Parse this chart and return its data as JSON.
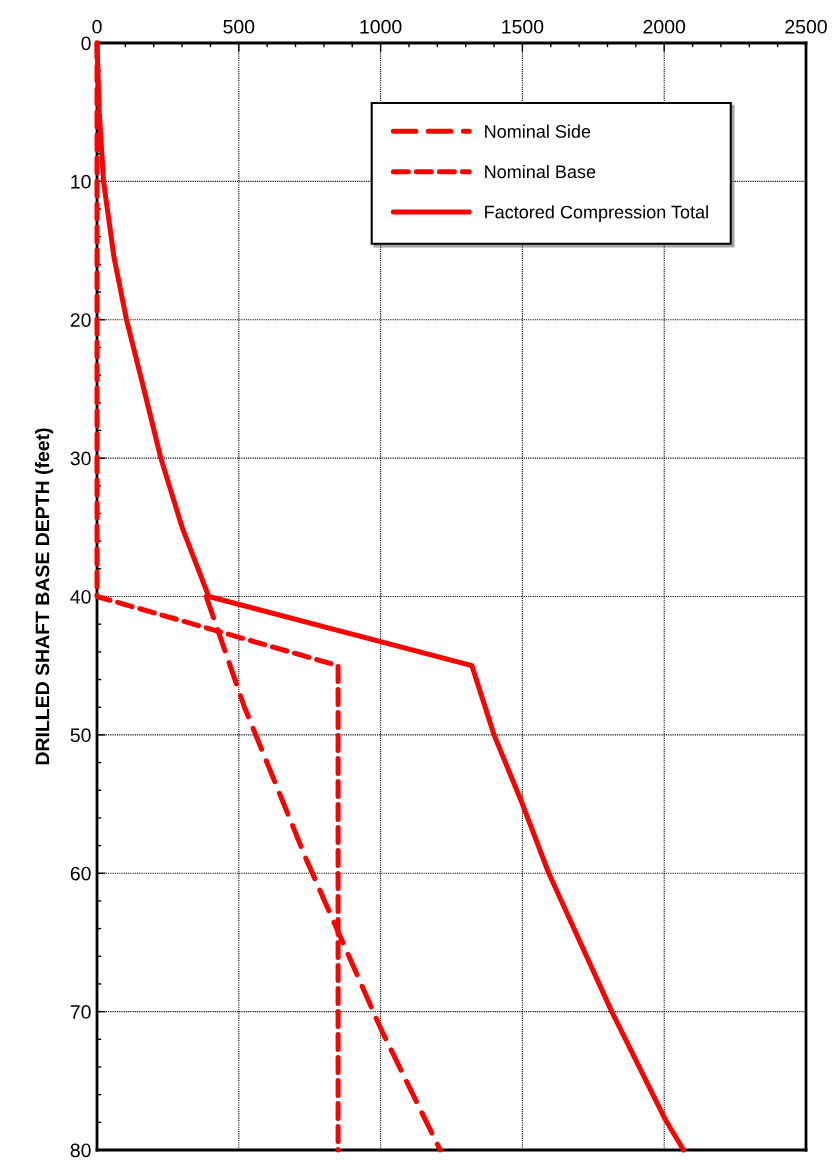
{
  "chart_data": {
    "type": "line",
    "ylabel": "DRILLED SHAFT BASE DEPTH (feet)",
    "orientation": "horizontal",
    "xlim": [
      0,
      2500
    ],
    "xticks": [
      0,
      500,
      1000,
      1500,
      2000,
      2500
    ],
    "ylim": [
      80,
      0
    ],
    "yticks": [
      0,
      10,
      20,
      30,
      40,
      50,
      60,
      70,
      80
    ],
    "grid": true,
    "legend": "top right",
    "marker": "none",
    "series": [
      {
        "name": "Nominal Side",
        "color": "#ff0000",
        "line_style": "dashed",
        "x": [
          40,
          48,
          59,
          71.3,
          80
        ],
        "values": [
          385,
          520,
          738,
          1002,
          1210
        ]
      },
      {
        "name": "Nominal Base",
        "color": "#ff0000",
        "line_style": "dotted",
        "x": [
          0,
          40,
          45,
          80
        ],
        "values": [
          0,
          0,
          850,
          850
        ]
      },
      {
        "name": "Factored Compression Total",
        "color": "#ff0000",
        "line_style": "solid",
        "x": [
          0,
          5,
          10,
          15.5,
          20,
          25,
          30,
          35,
          40,
          45,
          50,
          55,
          60,
          70,
          77.8,
          80
        ],
        "values": [
          0,
          8,
          23,
          60,
          104,
          165,
          225,
          300,
          394,
          1322,
          1400,
          1500,
          1593,
          1815,
          2004,
          2068
        ]
      }
    ]
  }
}
